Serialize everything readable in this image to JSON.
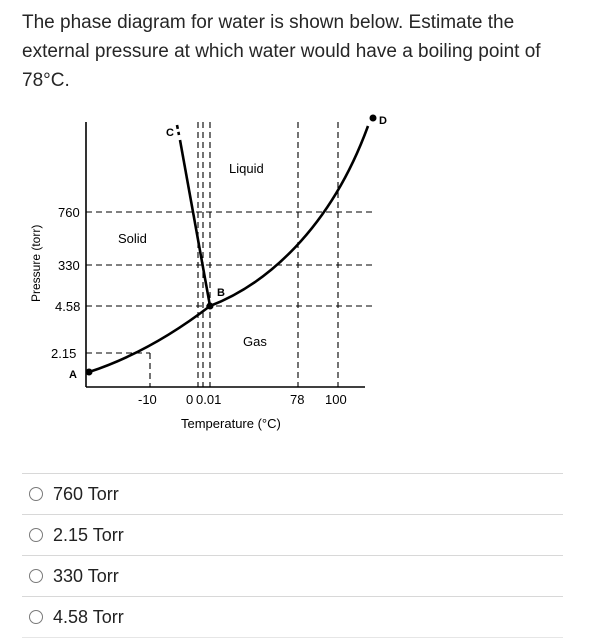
{
  "question": "The phase diagram for water is shown below. Estimate the external pressure at which water would have a boiling point of 78°C.",
  "diagram": {
    "ylabel": "Pressure (torr)",
    "xlabel": "Temperature (°C)",
    "y_ticks": [
      "760",
      "330",
      "4.58",
      "2.15"
    ],
    "x_ticks": [
      "-10",
      "0",
      "0.01",
      "78",
      "100"
    ],
    "regions": {
      "solid": "Solid",
      "liquid": "Liquid",
      "gas": "Gas"
    },
    "points": {
      "A": "A",
      "B": "B",
      "C": "C",
      "D": "D"
    }
  },
  "options": [
    {
      "label": "760 Torr"
    },
    {
      "label": "2.15 Torr"
    },
    {
      "label": "330 Torr"
    },
    {
      "label": "4.58 Torr"
    }
  ]
}
